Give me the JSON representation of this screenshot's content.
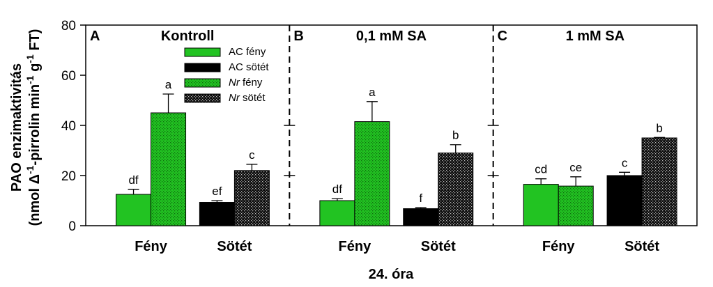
{
  "chart_data": {
    "type": "bar",
    "xlabel": "24. óra",
    "ylabel_line1": "PAO enzimaktivitás",
    "ylabel_line2_parts": [
      "(nmol Δ",
      "-1",
      "-pirrolin min",
      "-1",
      " g",
      "-1",
      " FT)"
    ],
    "ylim": [
      0,
      80
    ],
    "yticks": [
      "0",
      "20",
      "40",
      "60",
      "80"
    ],
    "legend": [
      {
        "name_plain": "AC fény",
        "italic": "",
        "rest": "",
        "color": "#22c322",
        "pattern": "solid"
      },
      {
        "name_plain": "AC sötét",
        "italic": "",
        "rest": "",
        "color": "#000000",
        "pattern": "solid"
      },
      {
        "name_plain": "",
        "italic": "Nr",
        "rest": " fény",
        "color": "#22c322",
        "pattern": "dots"
      },
      {
        "name_plain": "",
        "italic": "Nr",
        "rest": " sötét",
        "color": "#000000",
        "pattern": "dots"
      }
    ],
    "panels": [
      {
        "letter": "A",
        "title": "Kontroll",
        "categories": [
          "Fény",
          "Sötét"
        ],
        "bars": [
          {
            "category": "Fény",
            "series": "AC fény",
            "value": 12.5,
            "error": 2.0,
            "label": "df"
          },
          {
            "category": "Fény",
            "series": "Nr fény",
            "value": 45.0,
            "error": 7.5,
            "label": "a"
          },
          {
            "category": "Sötét",
            "series": "AC sötét",
            "value": 9.3,
            "error": 0.7,
            "label": "ef"
          },
          {
            "category": "Sötét",
            "series": "Nr sötét",
            "value": 22.0,
            "error": 2.5,
            "label": "c"
          }
        ]
      },
      {
        "letter": "B",
        "title": "0,1 mM SA",
        "categories": [
          "Fény",
          "Sötét"
        ],
        "bars": [
          {
            "category": "Fény",
            "series": "AC fény",
            "value": 10.0,
            "error": 0.8,
            "label": "df"
          },
          {
            "category": "Fény",
            "series": "Nr fény",
            "value": 41.5,
            "error": 8.0,
            "label": "a"
          },
          {
            "category": "Sötét",
            "series": "AC sötét",
            "value": 6.8,
            "error": 0.4,
            "label": "f"
          },
          {
            "category": "Sötét",
            "series": "Nr sötét",
            "value": 29.0,
            "error": 3.3,
            "label": "b"
          }
        ]
      },
      {
        "letter": "C",
        "title": "1 mM SA",
        "categories": [
          "Fény",
          "Sötét"
        ],
        "bars": [
          {
            "category": "Fény",
            "series": "AC fény",
            "value": 16.5,
            "error": 2.2,
            "label": "cd"
          },
          {
            "category": "Fény",
            "series": "Nr fény",
            "value": 15.8,
            "error": 3.7,
            "label": "ce"
          },
          {
            "category": "Sötét",
            "series": "AC sötét",
            "value": 20.0,
            "error": 1.3,
            "label": "c"
          },
          {
            "category": "Sötét",
            "series": "Nr sötét",
            "value": 35.0,
            "error": 0.2,
            "label": "b"
          }
        ]
      }
    ]
  }
}
